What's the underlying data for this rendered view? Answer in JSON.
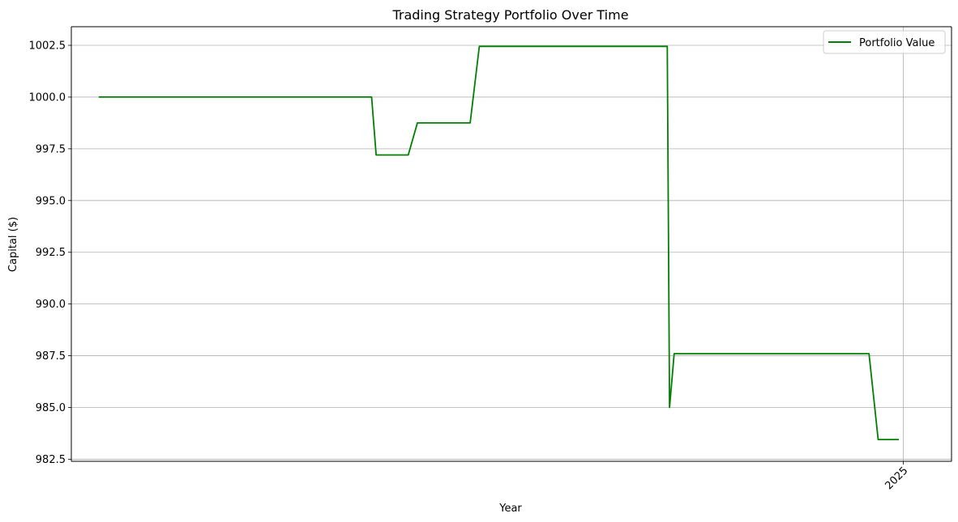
{
  "chart_data": {
    "type": "line",
    "title": "Trading Strategy Portfolio Over Time",
    "xlabel": "Year",
    "ylabel": "Capital ($)",
    "x_unit": "date",
    "xlim": [
      "2024-01-04",
      "2025-01-22"
    ],
    "ylim": [
      982.4,
      1003.4
    ],
    "y_ticks": [
      982.5,
      985.0,
      987.5,
      990.0,
      992.5,
      995.0,
      997.5,
      1000.0,
      1002.5
    ],
    "y_tick_labels": [
      "982.5",
      "985.0",
      "987.5",
      "990.0",
      "992.5",
      "995.0",
      "997.5",
      "1000.0",
      "1002.5"
    ],
    "x_ticks": [
      {
        "value": "2025-01-01",
        "label": "2025"
      }
    ],
    "grid": true,
    "legend": "top-right",
    "colors": {
      "series": "#008000",
      "grid": "#b0b0b0",
      "axis": "#000000"
    },
    "series": [
      {
        "name": "Portfolio Value",
        "color": "#008000",
        "points": [
          {
            "x": "2024-01-16",
            "y": 1000.0
          },
          {
            "x": "2024-05-14",
            "y": 1000.0
          },
          {
            "x": "2024-05-16",
            "y": 997.2
          },
          {
            "x": "2024-05-30",
            "y": 997.2
          },
          {
            "x": "2024-06-03",
            "y": 998.75
          },
          {
            "x": "2024-06-26",
            "y": 998.75
          },
          {
            "x": "2024-06-30",
            "y": 1002.45
          },
          {
            "x": "2024-09-20",
            "y": 1002.45
          },
          {
            "x": "2024-09-21",
            "y": 985.0
          },
          {
            "x": "2024-09-23",
            "y": 987.6
          },
          {
            "x": "2024-12-17",
            "y": 987.6
          },
          {
            "x": "2024-12-21",
            "y": 983.45
          },
          {
            "x": "2024-12-30",
            "y": 983.45
          }
        ]
      }
    ]
  }
}
